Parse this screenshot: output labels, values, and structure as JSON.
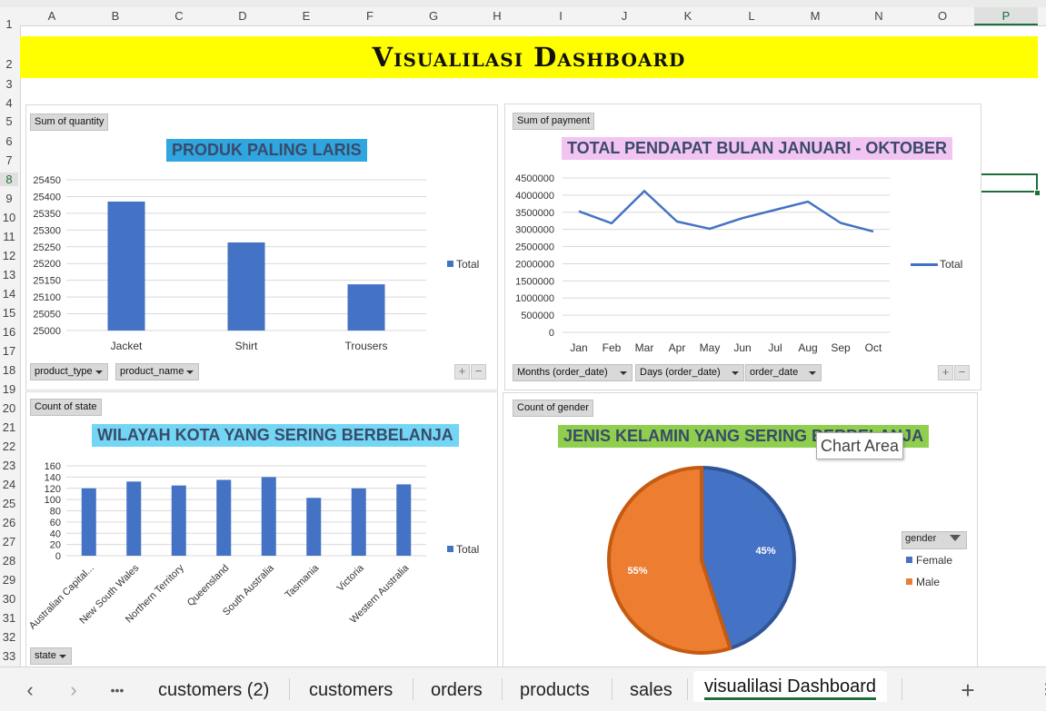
{
  "sheet": {
    "columns": [
      "A",
      "B",
      "C",
      "D",
      "E",
      "F",
      "G",
      "H",
      "I",
      "J",
      "K",
      "L",
      "M",
      "N",
      "O",
      "P"
    ],
    "rows": [
      "1",
      "2",
      "3",
      "4",
      "5",
      "6",
      "7",
      "8",
      "9",
      "10",
      "11",
      "12",
      "13",
      "14",
      "15",
      "16",
      "17",
      "18",
      "19",
      "20",
      "21",
      "22",
      "23",
      "24",
      "25",
      "26",
      "27",
      "28",
      "29",
      "30",
      "31",
      "32",
      "33"
    ],
    "selected_column": "P",
    "selected_row": "8"
  },
  "banner": {
    "title": "Visualilasi Dashboard",
    "color": "#ffff00"
  },
  "charts": [
    {
      "field_value": "Sum of quantity",
      "title": "PRODUK PALING LARIS",
      "title_bg": "#2fa6e0",
      "filters": [
        "product_type",
        "product_name"
      ],
      "legend": "Total"
    },
    {
      "field_value": "Sum of payment",
      "title": "TOTAL PENDAPAT BULAN JANUARI - OKTOBER",
      "title_bg": "#f2c4f2",
      "filters": [
        "Months (order_date)",
        "Days (order_date)",
        "order_date"
      ],
      "legend": "Total"
    },
    {
      "field_value": "Count of state",
      "title": "WILAYAH KOTA YANG SERING BERBELANJA",
      "title_bg": "#72d6f4",
      "filters": [
        "state"
      ],
      "legend": "Total"
    },
    {
      "field_value": "Count of gender",
      "title": "JENIS KELAMIN YANG SERING BERBELANJA",
      "title_bg": "#8fcf4d",
      "legend_title": "gender",
      "legend": [
        "Female",
        "Male"
      ]
    }
  ],
  "tooltip": "Chart Area",
  "chart_data": [
    {
      "type": "bar",
      "categories": [
        "Jacket",
        "Shirt",
        "Trousers"
      ],
      "series": [
        {
          "name": "Total",
          "values": [
            25385,
            25263,
            25138
          ]
        }
      ],
      "ylim": [
        25000,
        25450
      ],
      "yticks": [
        "25000",
        "25050",
        "25100",
        "25150",
        "25200",
        "25250",
        "25300",
        "25350",
        "25400",
        "25450"
      ],
      "grid": true,
      "legend_position": "right",
      "color": "#4472c4"
    },
    {
      "type": "line",
      "categories": [
        "Jan",
        "Feb",
        "Mar",
        "Apr",
        "May",
        "Jun",
        "Jul",
        "Aug",
        "Sep",
        "Oct"
      ],
      "series": [
        {
          "name": "Total",
          "values": [
            3530000,
            3180000,
            4120000,
            3230000,
            3020000,
            3330000,
            3570000,
            3810000,
            3190000,
            2940000
          ]
        }
      ],
      "ylim": [
        0,
        4500000
      ],
      "yticks": [
        "0",
        "500000",
        "1000000",
        "1500000",
        "2000000",
        "2500000",
        "3000000",
        "3500000",
        "4000000",
        "4500000"
      ],
      "grid": true,
      "legend_position": "right",
      "color": "#4472c4"
    },
    {
      "type": "bar",
      "categories": [
        "Australian Capital...",
        "New South Wales",
        "Northern Territory",
        "Queensland",
        "South Australia",
        "Tasmania",
        "Victoria",
        "Western Australia"
      ],
      "series": [
        {
          "name": "Total",
          "values": [
            120,
            132,
            125,
            135,
            140,
            103,
            120,
            127
          ]
        }
      ],
      "ylim": [
        0,
        160
      ],
      "yticks": [
        "0",
        "20",
        "40",
        "60",
        "80",
        "100",
        "120",
        "140",
        "160"
      ],
      "grid": true,
      "legend_position": "right",
      "color": "#4472c4"
    },
    {
      "type": "pie",
      "categories": [
        "Female",
        "Male"
      ],
      "values": [
        45,
        55
      ],
      "labels": [
        "45%",
        "55%"
      ],
      "colors": [
        "#4472c4",
        "#ed7d31"
      ],
      "legend_position": "right"
    }
  ],
  "tabs": {
    "items": [
      "customers (2)",
      "customers",
      "orders",
      "products",
      "sales",
      "visualilasi Dashboard"
    ],
    "active": "visualilasi Dashboard",
    "add_label": "+",
    "more_label": "•••"
  }
}
